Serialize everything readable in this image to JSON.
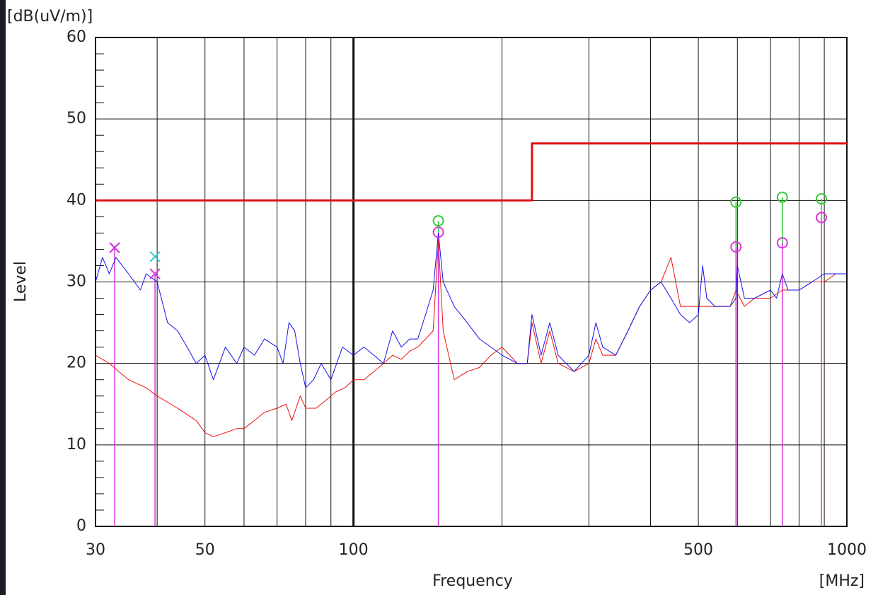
{
  "chart_data": {
    "type": "line",
    "y_unit": "[dB(uV/m)]",
    "y_label": "Level",
    "x_label": "Frequency",
    "x_unit": "[MHz]",
    "xscale": "log",
    "xlim": [
      30,
      1000
    ],
    "ylim": [
      0,
      60
    ],
    "xticks": [
      30,
      50,
      100,
      500,
      1000
    ],
    "xgrid": [
      40,
      60,
      70,
      80,
      90,
      200,
      300,
      400,
      600,
      700,
      800,
      900
    ],
    "yticks": [
      0,
      10,
      20,
      30,
      40,
      50,
      60
    ],
    "yminorticks": [
      2,
      4,
      6,
      8,
      12,
      14,
      16,
      18,
      22,
      24,
      26,
      28,
      32,
      34,
      36,
      38,
      42,
      44,
      46,
      48,
      52,
      54,
      56,
      58
    ],
    "grid": true,
    "series": [
      {
        "color": "#ee1111",
        "linewidth": 1,
        "x": [
          30,
          32,
          35,
          38,
          40,
          44,
          48,
          50,
          52,
          55,
          58,
          60,
          63,
          66,
          70,
          73,
          75,
          78,
          80,
          84,
          88,
          92,
          96,
          100,
          105,
          110,
          115,
          120,
          125,
          130,
          135,
          140,
          145,
          148.6,
          152,
          160,
          170,
          180,
          190,
          200,
          215,
          225,
          230,
          240,
          250,
          260,
          280,
          300,
          310,
          320,
          340,
          360,
          380,
          400,
          420,
          440,
          460,
          480,
          500,
          520,
          540,
          560,
          580,
          596,
          620,
          650,
          700,
          740,
          760,
          800,
          850,
          900,
          950,
          1000
        ],
        "values": [
          21,
          20,
          18,
          17,
          16,
          14.5,
          13,
          11.5,
          11,
          11.5,
          12,
          12,
          13,
          14,
          14.5,
          15,
          13,
          16,
          14.5,
          14.5,
          15.5,
          16.5,
          17,
          18,
          18,
          19,
          20,
          21,
          20.5,
          21.5,
          22,
          23,
          24,
          35,
          24,
          18,
          19,
          19.5,
          21,
          22,
          20,
          20,
          25,
          20,
          24,
          20,
          19,
          20,
          23,
          21,
          21,
          24,
          27,
          29,
          30,
          33,
          27,
          27,
          27,
          27,
          27,
          27,
          27,
          29,
          27,
          28,
          28,
          29,
          29,
          29,
          30,
          30,
          31,
          31
        ]
      },
      {
        "color": "#1111ee",
        "linewidth": 1,
        "x": [
          30,
          31,
          32,
          33,
          35,
          37,
          38,
          40,
          42,
          44,
          46,
          48,
          50,
          52,
          55,
          58,
          60,
          63,
          66,
          70,
          72,
          74,
          76,
          78,
          80,
          83,
          86,
          90,
          95,
          100,
          105,
          110,
          115,
          120,
          125,
          130,
          135,
          140,
          145,
          148.6,
          152,
          160,
          170,
          180,
          190,
          200,
          215,
          225,
          230,
          240,
          250,
          260,
          280,
          300,
          310,
          320,
          340,
          360,
          380,
          400,
          420,
          440,
          460,
          480,
          500,
          510,
          520,
          540,
          560,
          580,
          596,
          600,
          620,
          650,
          700,
          720,
          740,
          760,
          800,
          850,
          900,
          950,
          1000
        ],
        "values": [
          30,
          33,
          31,
          33,
          31,
          29,
          31,
          30,
          25,
          24,
          22,
          20,
          21,
          18,
          22,
          20,
          22,
          21,
          23,
          22,
          20,
          25,
          24,
          20,
          17,
          18,
          20,
          18,
          22,
          21,
          22,
          21,
          20,
          24,
          22,
          23,
          23,
          26,
          29,
          36,
          30,
          27,
          25,
          23,
          22,
          21,
          20,
          20,
          26,
          21,
          25,
          21,
          19,
          21,
          25,
          22,
          21,
          24,
          27,
          29,
          30,
          28,
          26,
          25,
          26,
          32,
          28,
          27,
          27,
          27,
          28,
          32,
          28,
          28,
          29,
          28,
          31,
          29,
          29,
          30,
          31,
          31,
          31
        ]
      },
      {
        "color": "#dd1111",
        "linewidth": 3,
        "x": [
          30,
          230,
          230,
          1000
        ],
        "values": [
          40,
          40,
          47,
          47
        ]
      }
    ],
    "markers": [
      {
        "shape": "x",
        "color": "#33cccc",
        "x": [
          32.8,
          39.6
        ],
        "values": [
          34.2,
          33.1
        ]
      },
      {
        "shape": "x",
        "color": "#dd33dd",
        "x": [
          32.8,
          39.6
        ],
        "values": [
          34.2,
          31.0
        ]
      },
      {
        "shape": "circle",
        "color": "#33cc33",
        "x": [
          148.6,
          596,
          740,
          888
        ],
        "values": [
          37.5,
          39.8,
          40.4,
          40.2
        ]
      },
      {
        "shape": "circle",
        "color": "#dd33dd",
        "x": [
          148.6,
          596,
          740,
          888
        ],
        "values": [
          36.1,
          34.3,
          34.8,
          37.9
        ]
      }
    ]
  }
}
